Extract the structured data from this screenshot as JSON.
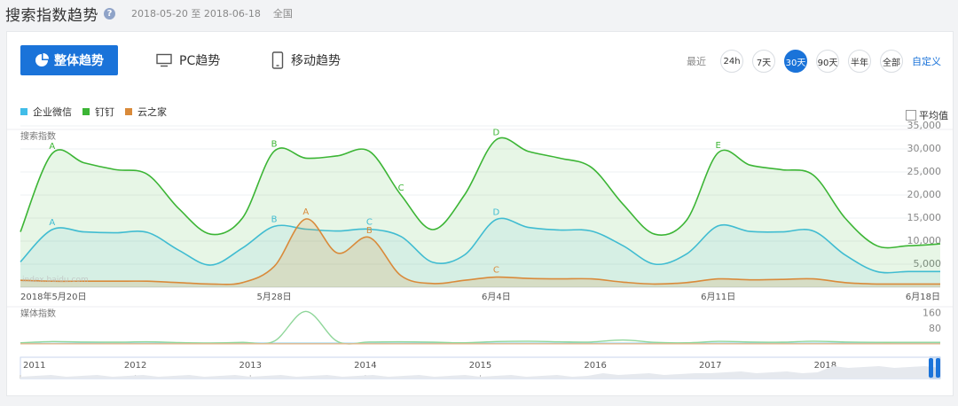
{
  "header": {
    "title": "搜索指数趋势",
    "help_icon": "question-circle-icon",
    "date_range": "2018-05-20 至 2018-06-18",
    "region": "全国"
  },
  "tabs": [
    {
      "label": "整体趋势",
      "icon": "pie-chart-icon",
      "active": true
    },
    {
      "label": "PC趋势",
      "icon": "monitor-icon",
      "active": false
    },
    {
      "label": "移动趋势",
      "icon": "mobile-icon",
      "active": false
    }
  ],
  "range": {
    "label": "最近",
    "options": [
      "24h",
      "7天",
      "30天",
      "90天",
      "半年",
      "全部"
    ],
    "active": "30天",
    "custom": "自定义"
  },
  "legend": [
    {
      "name": "企业微信",
      "color": "#41bde8"
    },
    {
      "name": "钉钉",
      "color": "#3cb535"
    },
    {
      "name": "云之家",
      "color": "#d98a3a"
    }
  ],
  "avg_toggle": "平均值",
  "watermark": "index.baidu.com",
  "chart_data": [
    {
      "type": "area",
      "title": "搜索指数",
      "x": [
        "2018-05-20",
        "2018-05-21",
        "2018-05-22",
        "2018-05-23",
        "2018-05-24",
        "2018-05-25",
        "2018-05-26",
        "2018-05-27",
        "2018-05-28",
        "2018-05-29",
        "2018-05-30",
        "2018-05-31",
        "2018-06-01",
        "2018-06-02",
        "2018-06-03",
        "2018-06-04",
        "2018-06-05",
        "2018-06-06",
        "2018-06-07",
        "2018-06-08",
        "2018-06-09",
        "2018-06-10",
        "2018-06-11",
        "2018-06-12",
        "2018-06-13",
        "2018-06-14",
        "2018-06-15",
        "2018-06-16",
        "2018-06-17",
        "2018-06-18"
      ],
      "xtick_labels": [
        "2018年5月20日",
        "5月28日",
        "6月4日",
        "6月11日",
        "6月18日"
      ],
      "xtick_dates": [
        "2018-05-20",
        "2018-05-28",
        "2018-06-04",
        "2018-06-11",
        "2018-06-18"
      ],
      "ylim": [
        0,
        35000
      ],
      "yticks": [
        5000,
        10000,
        15000,
        20000,
        25000,
        30000,
        35000
      ],
      "ytick_labels": [
        "5,000",
        "10,000",
        "15,000",
        "20,000",
        "25,000",
        "30,000",
        "35,000"
      ],
      "grid": true,
      "series": [
        {
          "name": "企业微信",
          "color": "#41bde8",
          "values": [
            5500,
            12500,
            12000,
            11800,
            11900,
            8000,
            4800,
            8500,
            13200,
            12600,
            12200,
            12600,
            11000,
            5400,
            7000,
            14700,
            13000,
            12400,
            12200,
            9000,
            5000,
            7200,
            13300,
            12100,
            12000,
            12200,
            7000,
            3400,
            3400,
            3400
          ],
          "markers": [
            {
              "label": "A",
              "index": 1
            },
            {
              "label": "B",
              "index": 8
            },
            {
              "label": "C",
              "index": 11
            },
            {
              "label": "D",
              "index": 15
            }
          ]
        },
        {
          "name": "钉钉",
          "color": "#3cb535",
          "values": [
            12000,
            29000,
            27000,
            25500,
            24500,
            17000,
            11500,
            15000,
            29500,
            28000,
            28500,
            29500,
            20000,
            12500,
            20000,
            32000,
            29500,
            28000,
            26000,
            18000,
            11500,
            14500,
            29200,
            26500,
            25500,
            24300,
            15000,
            9000,
            9000,
            9400
          ],
          "markers": [
            {
              "label": "A",
              "index": 1
            },
            {
              "label": "B",
              "index": 8
            },
            {
              "label": "C",
              "index": 12
            },
            {
              "label": "D",
              "index": 15
            },
            {
              "label": "E",
              "index": 22
            }
          ]
        },
        {
          "name": "云之家",
          "color": "#d98a3a",
          "values": [
            1500,
            1300,
            1300,
            1300,
            1300,
            1000,
            700,
            1000,
            4500,
            14800,
            7400,
            10800,
            2500,
            800,
            1500,
            2200,
            1900,
            1800,
            1800,
            1100,
            700,
            1000,
            1800,
            1600,
            1700,
            1800,
            1000,
            700,
            700,
            700
          ],
          "markers": [
            {
              "label": "A",
              "index": 9
            },
            {
              "label": "B",
              "index": 11
            },
            {
              "label": "C",
              "index": 15
            }
          ]
        }
      ]
    },
    {
      "type": "line",
      "title": "媒体指数",
      "ylim": [
        0,
        180
      ],
      "yticks": [
        80,
        160
      ],
      "ytick_labels": [
        "80",
        "160"
      ],
      "grid": false,
      "series": [
        {
          "name": "企业微信",
          "color": "#41bde8",
          "values": [
            3,
            3,
            4,
            3,
            4,
            4,
            4,
            5,
            4,
            4,
            4,
            3,
            4,
            4,
            4,
            4,
            4,
            4,
            4,
            4,
            4,
            4,
            4,
            4,
            4,
            4,
            4,
            4,
            4,
            4
          ]
        },
        {
          "name": "钉钉",
          "color": "#3cb535",
          "values": [
            6,
            12,
            10,
            9,
            11,
            7,
            5,
            8,
            14,
            165,
            12,
            10,
            11,
            9,
            6,
            12,
            14,
            11,
            10,
            20,
            8,
            6,
            13,
            10,
            9,
            14,
            10,
            8,
            8,
            8
          ]
        },
        {
          "name": "云之家",
          "color": "#d98a3a",
          "values": [
            1,
            1,
            1,
            1,
            1,
            1,
            1,
            1,
            1,
            1,
            1,
            1,
            1,
            1,
            1,
            1,
            1,
            1,
            1,
            1,
            1,
            1,
            1,
            1,
            1,
            1,
            1,
            1,
            1,
            1
          ]
        }
      ]
    },
    {
      "type": "area",
      "title": "时间轴",
      "xtick_labels": [
        "2011",
        "2012",
        "2013",
        "2014",
        "2015",
        "2016",
        "2017",
        "2018"
      ],
      "x": [
        "2011",
        "2012",
        "2013",
        "2014",
        "2015",
        "2016",
        "2017",
        "2018"
      ],
      "values": [
        1,
        1,
        1,
        1,
        1,
        2,
        3,
        6
      ],
      "selection": [
        "2018-05-20",
        "2018-06-18"
      ]
    }
  ]
}
